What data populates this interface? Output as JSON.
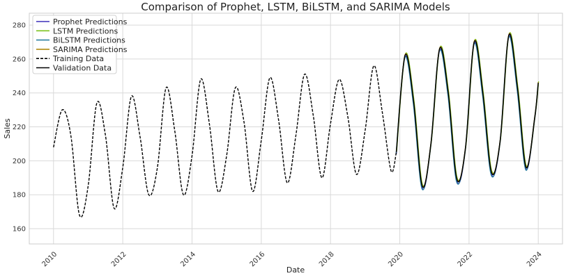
{
  "chart_data": {
    "type": "line",
    "title": "Comparison of Prophet, LSTM, BiLSTM, and SARIMA Models",
    "xlabel": "Date",
    "ylabel": "Sales",
    "xlim": [
      2009.3,
      2024.7
    ],
    "ylim": [
      151,
      287
    ],
    "x_ticks": [
      2010,
      2012,
      2014,
      2016,
      2018,
      2020,
      2022,
      2024
    ],
    "x_tick_labels": [
      "2010",
      "2012",
      "2014",
      "2016",
      "2018",
      "2020",
      "2022",
      "2024"
    ],
    "y_ticks": [
      160,
      180,
      200,
      220,
      240,
      260,
      280
    ],
    "y_tick_labels": [
      "160",
      "180",
      "200",
      "220",
      "240",
      "260",
      "280"
    ],
    "grid": true,
    "legend_position": "top-left",
    "training_period": [
      2010.0,
      2019.9
    ],
    "validation_period": [
      2019.85,
      2024.0
    ],
    "training_series": {
      "x": [
        2010.0,
        2010.25,
        2010.5,
        2010.75,
        2011.0,
        2011.25,
        2011.5,
        2011.75,
        2012.0,
        2012.25,
        2012.5,
        2012.75,
        2013.0,
        2013.25,
        2013.5,
        2013.75,
        2014.0,
        2014.25,
        2014.5,
        2014.75,
        2015.0,
        2015.25,
        2015.5,
        2015.75,
        2016.0,
        2016.25,
        2016.5,
        2016.75,
        2017.0,
        2017.25,
        2017.5,
        2017.75,
        2018.0,
        2018.25,
        2018.5,
        2018.75,
        2019.0,
        2019.25,
        2019.5,
        2019.75,
        2019.9
      ],
      "y": [
        208,
        230,
        215,
        168,
        185,
        234,
        215,
        172,
        196,
        238,
        214,
        180,
        196,
        243,
        218,
        180,
        203,
        248,
        222,
        182,
        203,
        243,
        223,
        182,
        212,
        249,
        224,
        187,
        215,
        251,
        227,
        190,
        222,
        248,
        226,
        192,
        218,
        256,
        228,
        194,
        205
      ]
    },
    "validation_series": {
      "x": [
        2019.9,
        2020.15,
        2020.4,
        2020.65,
        2020.9,
        2021.15,
        2021.4,
        2021.65,
        2021.9,
        2022.15,
        2022.4,
        2022.65,
        2022.9,
        2023.15,
        2023.4,
        2023.65,
        2023.9,
        2024.0
      ],
      "y": [
        205,
        262,
        235,
        185,
        210,
        266,
        240,
        189,
        208,
        270,
        240,
        193,
        212,
        274,
        243,
        196,
        226,
        246
      ]
    },
    "series": [
      {
        "name": "Prophet Predictions",
        "color": "#3b2fb8"
      },
      {
        "name": "LSTM Predictions",
        "color": "#7bc21e"
      },
      {
        "name": "BiLSTM Predictions",
        "color": "#2a7fa0"
      },
      {
        "name": "SARIMA Predictions",
        "color": "#b08a10"
      },
      {
        "name": "Training Data",
        "color": "#000000",
        "dash": true
      },
      {
        "name": "Validation Data",
        "color": "#000000"
      }
    ]
  }
}
